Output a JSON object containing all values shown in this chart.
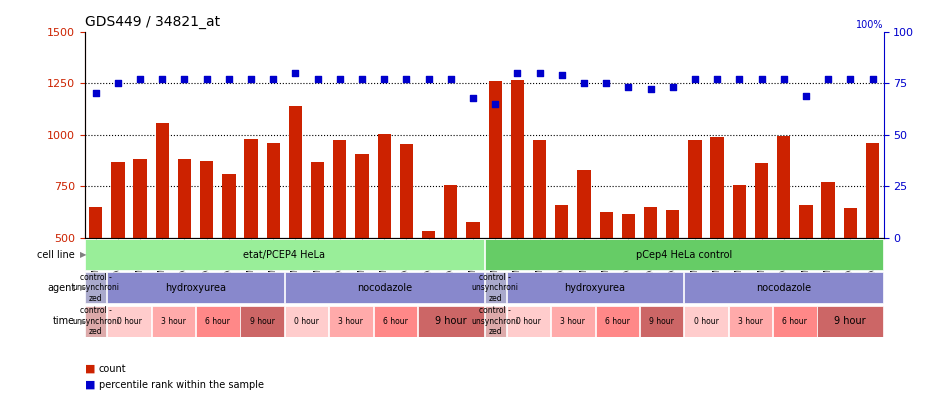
{
  "title": "GDS449 / 34821_at",
  "samples": [
    "GSM8692",
    "GSM8693",
    "GSM8694",
    "GSM8695",
    "GSM8696",
    "GSM8697",
    "GSM8698",
    "GSM8699",
    "GSM8700",
    "GSM8701",
    "GSM8702",
    "GSM8703",
    "GSM8704",
    "GSM8705",
    "GSM8706",
    "GSM8707",
    "GSM8708",
    "GSM8709",
    "GSM8710",
    "GSM8711",
    "GSM8712",
    "GSM8713",
    "GSM8714",
    "GSM8715",
    "GSM8716",
    "GSM8717",
    "GSM8718",
    "GSM8719",
    "GSM8720",
    "GSM8721",
    "GSM8722",
    "GSM8723",
    "GSM8724",
    "GSM8725",
    "GSM8726",
    "GSM8727"
  ],
  "bar_values": [
    650,
    865,
    880,
    1055,
    880,
    870,
    810,
    980,
    960,
    1140,
    865,
    975,
    905,
    1005,
    955,
    530,
    755,
    575,
    1260,
    1265,
    975,
    660,
    830,
    625,
    615,
    650,
    635,
    975,
    990,
    755,
    860,
    995,
    660,
    770,
    645,
    960
  ],
  "percentile_values": [
    70,
    75,
    77,
    77,
    77,
    77,
    77,
    77,
    77,
    80,
    77,
    77,
    77,
    77,
    77,
    77,
    77,
    68,
    65,
    80,
    80,
    79,
    75,
    75,
    73,
    72,
    73,
    77,
    77,
    77,
    77,
    77,
    69,
    77,
    77,
    77
  ],
  "bar_color": "#cc2200",
  "percentile_color": "#0000cc",
  "ylim_left": [
    500,
    1500
  ],
  "ylim_right": [
    0,
    100
  ],
  "yticks_left": [
    500,
    750,
    1000,
    1250,
    1500
  ],
  "yticks_right": [
    0,
    25,
    50,
    75,
    100
  ],
  "cell_line_groups": [
    {
      "label": "etat/PCEP4 HeLa",
      "start": 0,
      "end": 18,
      "color": "#99ee99"
    },
    {
      "label": "pCep4 HeLa control",
      "start": 18,
      "end": 36,
      "color": "#66cc66"
    }
  ],
  "agent_groups": [
    {
      "label": "control -\nunsynchroni\nzed",
      "start": 0,
      "end": 1,
      "color": "#aaaacc"
    },
    {
      "label": "hydroxyurea",
      "start": 1,
      "end": 9,
      "color": "#8888cc"
    },
    {
      "label": "nocodazole",
      "start": 9,
      "end": 18,
      "color": "#8888cc"
    },
    {
      "label": "control -\nunsynchroni\nzed",
      "start": 18,
      "end": 19,
      "color": "#aaaacc"
    },
    {
      "label": "hydroxyurea",
      "start": 19,
      "end": 27,
      "color": "#8888cc"
    },
    {
      "label": "nocodazole",
      "start": 27,
      "end": 36,
      "color": "#8888cc"
    }
  ],
  "time_groups": [
    {
      "label": "control -\nunsynchroni\nzed",
      "start": 0,
      "end": 1,
      "color": "#ddaaaa"
    },
    {
      "label": "0 hour",
      "start": 1,
      "end": 3,
      "color": "#ffcccc"
    },
    {
      "label": "3 hour",
      "start": 3,
      "end": 5,
      "color": "#ffaaaa"
    },
    {
      "label": "6 hour",
      "start": 5,
      "end": 7,
      "color": "#ff8888"
    },
    {
      "label": "9 hour",
      "start": 7,
      "end": 9,
      "color": "#cc6666"
    },
    {
      "label": "0 hour",
      "start": 9,
      "end": 11,
      "color": "#ffcccc"
    },
    {
      "label": "3 hour",
      "start": 11,
      "end": 13,
      "color": "#ffaaaa"
    },
    {
      "label": "6 hour",
      "start": 13,
      "end": 15,
      "color": "#ff8888"
    },
    {
      "label": "9 hour",
      "start": 15,
      "end": 18,
      "color": "#cc6666"
    },
    {
      "label": "control -\nunsynchroni\nzed",
      "start": 18,
      "end": 19,
      "color": "#ddaaaa"
    },
    {
      "label": "0 hour",
      "start": 19,
      "end": 21,
      "color": "#ffcccc"
    },
    {
      "label": "3 hour",
      "start": 21,
      "end": 23,
      "color": "#ffaaaa"
    },
    {
      "label": "6 hour",
      "start": 23,
      "end": 25,
      "color": "#ff8888"
    },
    {
      "label": "9 hour",
      "start": 25,
      "end": 27,
      "color": "#cc6666"
    },
    {
      "label": "0 hour",
      "start": 27,
      "end": 29,
      "color": "#ffcccc"
    },
    {
      "label": "3 hour",
      "start": 29,
      "end": 31,
      "color": "#ffaaaa"
    },
    {
      "label": "6 hour",
      "start": 31,
      "end": 33,
      "color": "#ff8888"
    },
    {
      "label": "9 hour",
      "start": 33,
      "end": 36,
      "color": "#cc6666"
    }
  ]
}
